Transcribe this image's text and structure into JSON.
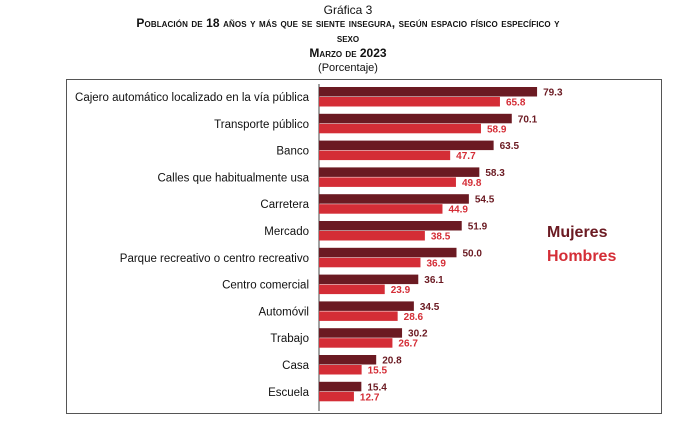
{
  "header": {
    "supertitle": "Gráfica 3",
    "title_line1": "Población de 18 años y más que se siente insegura, según espacio físico específico y",
    "title_line2": "sexo",
    "date": "Marzo de 2023",
    "unit": "(Porcentaje)"
  },
  "chart_data": {
    "type": "bar",
    "orientation": "horizontal",
    "title": "Población de 18 años y más que se siente insegura, según espacio físico específico y sexo",
    "subtitle": "Marzo de 2023",
    "unit": "(Porcentaje)",
    "xlim": [
      0,
      100
    ],
    "grid": false,
    "legend_position": "right",
    "categories": [
      "Cajero automático localizado en la vía pública",
      "Transporte público",
      "Banco",
      "Calles que habitualmente usa",
      "Carretera",
      "Mercado",
      "Parque recreativo o centro recreativo",
      "Centro comercial",
      "Automóvil",
      "Trabajo",
      "Casa",
      "Escuela"
    ],
    "series": [
      {
        "name": "Mujeres",
        "color": "#6b1a22",
        "values": [
          79.3,
          70.1,
          63.5,
          58.3,
          54.5,
          51.9,
          50.0,
          36.1,
          34.5,
          30.2,
          20.8,
          15.4
        ],
        "labels": [
          "79.3",
          "70.1",
          "63.5",
          "58.3",
          "54.5",
          "51.9",
          "50.0",
          "36.1",
          "34.5",
          "30.2",
          "20.8",
          "15.4"
        ]
      },
      {
        "name": "Hombres",
        "color": "#d42d36",
        "values": [
          65.8,
          58.9,
          47.7,
          49.8,
          44.9,
          38.5,
          36.9,
          23.9,
          28.6,
          26.7,
          15.5,
          12.7
        ],
        "labels": [
          "65.8",
          "58.9",
          "47.7",
          "49.8",
          "44.9",
          "38.5",
          "36.9",
          "23.9",
          "28.6",
          "26.7",
          "15.5",
          "12.7"
        ]
      }
    ]
  }
}
